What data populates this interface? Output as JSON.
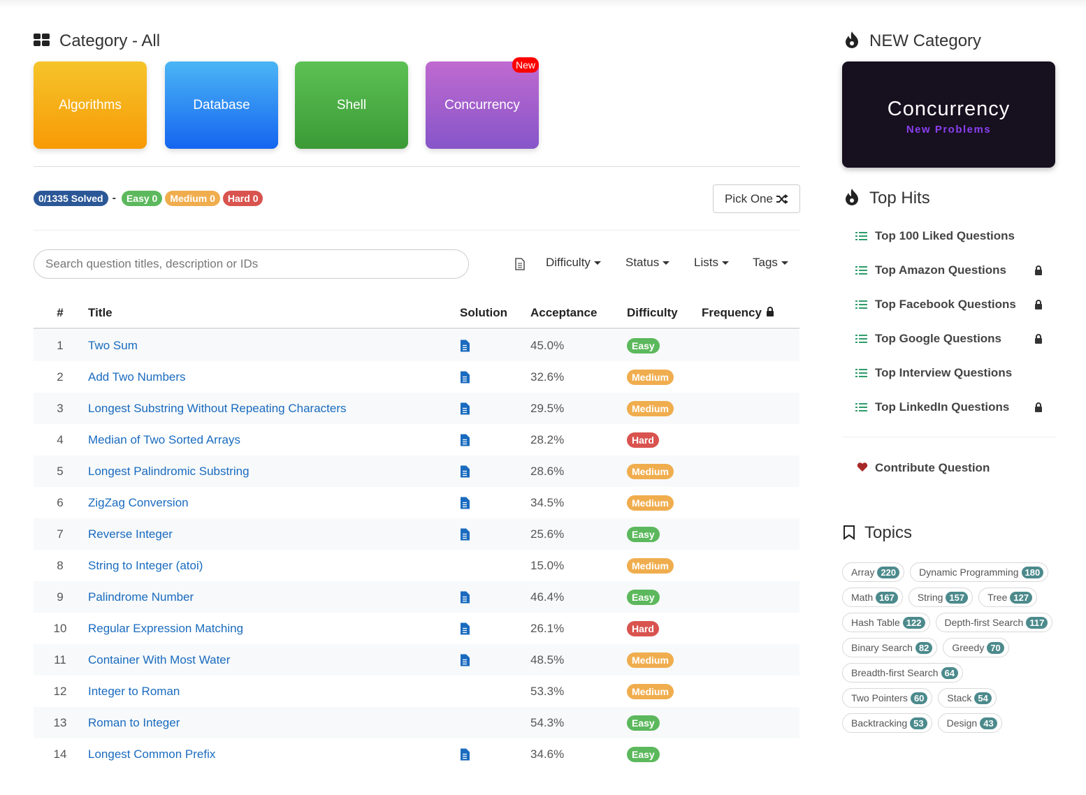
{
  "category": {
    "title": "Category - All",
    "cards": [
      "Algorithms",
      "Database",
      "Shell",
      "Concurrency"
    ],
    "new_badge": "New"
  },
  "stats": {
    "solved": "0/1335 Solved",
    "separator": "-",
    "badges": [
      {
        "text": "Easy 0",
        "color": "#5cb85c"
      },
      {
        "text": "Medium 0",
        "color": "#f0ad4e"
      },
      {
        "text": "Hard 0",
        "color": "#d9534f"
      }
    ],
    "solved_color": "#2b5797"
  },
  "pick_one": "Pick One",
  "search_placeholder": "Search question titles, description or IDs",
  "filters": [
    "Difficulty",
    "Status",
    "Lists",
    "Tags"
  ],
  "table": {
    "headers": [
      "#",
      "Title",
      "Solution",
      "Acceptance",
      "Difficulty",
      "Frequency"
    ],
    "difficulty_colors": {
      "Easy": "#5cb85c",
      "Medium": "#f0ad4e",
      "Hard": "#d9534f"
    },
    "rows": [
      [
        1,
        "Two Sum",
        true,
        "45.0%",
        "Easy"
      ],
      [
        2,
        "Add Two Numbers",
        true,
        "32.6%",
        "Medium"
      ],
      [
        3,
        "Longest Substring Without Repeating Characters",
        true,
        "29.5%",
        "Medium"
      ],
      [
        4,
        "Median of Two Sorted Arrays",
        true,
        "28.2%",
        "Hard"
      ],
      [
        5,
        "Longest Palindromic Substring",
        true,
        "28.6%",
        "Medium"
      ],
      [
        6,
        "ZigZag Conversion",
        true,
        "34.5%",
        "Medium"
      ],
      [
        7,
        "Reverse Integer",
        true,
        "25.6%",
        "Easy"
      ],
      [
        8,
        "String to Integer (atoi)",
        false,
        "15.0%",
        "Medium"
      ],
      [
        9,
        "Palindrome Number",
        true,
        "46.4%",
        "Easy"
      ],
      [
        10,
        "Regular Expression Matching",
        true,
        "26.1%",
        "Hard"
      ],
      [
        11,
        "Container With Most Water",
        true,
        "48.5%",
        "Medium"
      ],
      [
        12,
        "Integer to Roman",
        false,
        "53.3%",
        "Medium"
      ],
      [
        13,
        "Roman to Integer",
        false,
        "54.3%",
        "Easy"
      ],
      [
        14,
        "Longest Common Prefix",
        true,
        "34.6%",
        "Easy"
      ]
    ]
  },
  "sidebar": {
    "new_category": {
      "title": "NEW Category",
      "banner_title": "Concurrency",
      "banner_subtitle": "New Problems"
    },
    "top_hits": {
      "title": "Top Hits",
      "items": [
        {
          "text": "Top 100 Liked Questions",
          "locked": false
        },
        {
          "text": "Top Amazon Questions",
          "locked": true
        },
        {
          "text": "Top Facebook Questions",
          "locked": true
        },
        {
          "text": "Top Google Questions",
          "locked": true
        },
        {
          "text": "Top Interview Questions",
          "locked": false
        },
        {
          "text": "Top LinkedIn Questions",
          "locked": true
        }
      ]
    },
    "contribute": "Contribute Question",
    "topics": {
      "title": "Topics",
      "tags": [
        [
          "Array",
          220
        ],
        [
          "Dynamic Programming",
          180
        ],
        [
          "Math",
          167
        ],
        [
          "String",
          157
        ],
        [
          "Tree",
          127
        ],
        [
          "Hash Table",
          122
        ],
        [
          "Depth-first Search",
          117
        ],
        [
          "Binary Search",
          82
        ],
        [
          "Greedy",
          70
        ],
        [
          "Breadth-first Search",
          64
        ],
        [
          "Two Pointers",
          60
        ],
        [
          "Stack",
          54
        ],
        [
          "Backtracking",
          53
        ],
        [
          "Design",
          43
        ]
      ]
    }
  }
}
